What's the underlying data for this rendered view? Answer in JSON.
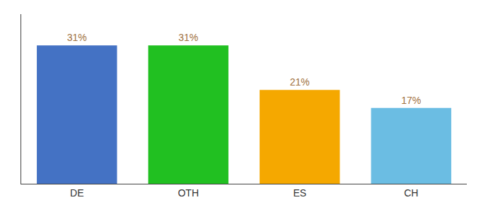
{
  "chart_data": {
    "type": "bar",
    "categories": [
      "DE",
      "OTH",
      "ES",
      "CH"
    ],
    "values": [
      31,
      31,
      21,
      17
    ],
    "value_labels": [
      "31%",
      "31%",
      "21%",
      "17%"
    ],
    "data_labels": true,
    "colors": [
      "#4472c4",
      "#21c021",
      "#f5a800",
      "#6bbde3"
    ],
    "ylim": [
      0,
      38
    ],
    "tick_labels": "x",
    "grid": false
  }
}
